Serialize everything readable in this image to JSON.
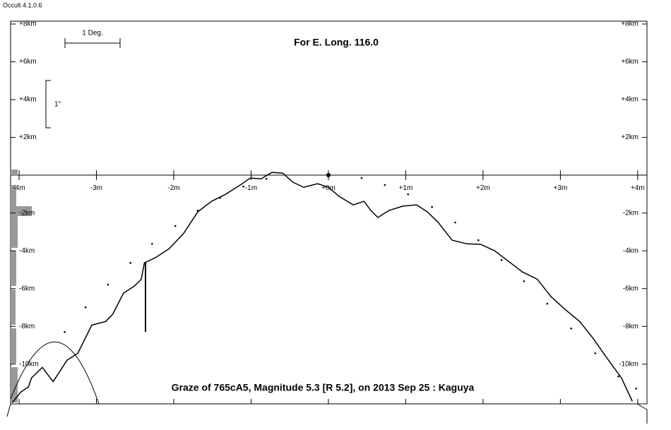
{
  "app_title": "Occult 4.1.0.6",
  "chart_data": {
    "type": "line",
    "title": "For E. Long. 116.0",
    "caption": "Graze of  765cA5,  Magnitude 5.3 [R 5.2],  on 2013 Sep 25  :  Kaguya",
    "scale_labels": {
      "degree": "1 Deg.",
      "arcsec": "1\""
    },
    "xlim": [
      -4.11,
      4.12
    ],
    "ylim": [
      -12.1,
      8.15
    ],
    "xticks": [
      {
        "value": -4,
        "label": "-4m"
      },
      {
        "value": -3,
        "label": "-3m"
      },
      {
        "value": -2,
        "label": "-2m"
      },
      {
        "value": -1,
        "label": "-1m"
      },
      {
        "value": 0,
        "label": "+0m"
      },
      {
        "value": 1,
        "label": "+1m"
      },
      {
        "value": 2,
        "label": "+2m"
      },
      {
        "value": 3,
        "label": "+3m"
      },
      {
        "value": 4,
        "label": "+4m"
      }
    ],
    "yticks": [
      {
        "value": 8,
        "label": "+8km"
      },
      {
        "value": 6,
        "label": "+6km"
      },
      {
        "value": 4,
        "label": "+4km"
      },
      {
        "value": 2,
        "label": "+2km"
      },
      {
        "value": -2,
        "label": "-2km"
      },
      {
        "value": -4,
        "label": "-4km"
      },
      {
        "value": -6,
        "label": "-6km"
      },
      {
        "value": -8,
        "label": "-8km"
      },
      {
        "value": -10,
        "label": "-10km"
      }
    ],
    "series": [
      {
        "style": "line",
        "color": "#000000",
        "x": [
          -4.09,
          -3.98,
          -3.88,
          -3.84,
          -3.7,
          -3.56,
          -3.47,
          -3.38,
          -3.24,
          -3.06,
          -2.88,
          -2.79,
          -2.65,
          -2.51,
          -2.42,
          -2.38,
          -2.24,
          -2.06,
          -1.87,
          -1.69,
          -1.51,
          -1.33,
          -1.14,
          -1.01,
          -0.87,
          -0.73,
          -0.59,
          -0.46,
          -0.32,
          -0.14,
          0,
          0.14,
          0.32,
          0.46,
          0.55,
          0.64,
          0.78,
          0.96,
          1.14,
          1.28,
          1.42,
          1.6,
          1.79,
          1.97,
          2.15,
          2.33,
          2.51,
          2.7,
          2.88,
          3.06,
          3.25,
          3.43,
          3.61,
          3.79,
          3.93
        ],
        "values": [
          -12.04,
          -11.48,
          -11.21,
          -10.73,
          -10.17,
          -10.92,
          -10.36,
          -9.79,
          -9.42,
          -7.93,
          -7.74,
          -7.36,
          -6.24,
          -5.87,
          -5.5,
          -4.64,
          -4.37,
          -3.89,
          -3.07,
          -1.94,
          -1.38,
          -1.01,
          -0.52,
          -0.15,
          -0.19,
          0.15,
          0.11,
          -0.37,
          -0.64,
          -0.45,
          -0.64,
          -1.12,
          -1.57,
          -1.38,
          -1.87,
          -2.24,
          -1.87,
          -1.64,
          -1.57,
          -1.94,
          -2.5,
          -3.44,
          -3.63,
          -3.66,
          -4.0,
          -4.56,
          -5.12,
          -5.5,
          -6.43,
          -7.1,
          -7.74,
          -8.67,
          -9.72,
          -10.73,
          -11.96
        ]
      },
      {
        "style": "dots",
        "color": "#000000",
        "x": [
          -3.41,
          -3.14,
          -2.85,
          -2.56,
          -2.28,
          -1.98,
          -1.69,
          -1.4,
          -1.1,
          -0.8,
          0.43,
          0.73,
          1.03,
          1.34,
          1.64,
          1.94,
          2.24,
          2.53,
          2.83,
          3.14,
          3.45,
          3.75,
          3.98
        ],
        "values": [
          -8.3,
          -6.99,
          -5.79,
          -4.64,
          -3.63,
          -2.69,
          -1.87,
          -1.2,
          -0.6,
          -0.19,
          -0.15,
          -0.52,
          -1.01,
          -1.68,
          -2.5,
          -3.44,
          -4.49,
          -5.61,
          -6.8,
          -8.11,
          -9.42,
          -10.65,
          -11.29
        ]
      }
    ]
  }
}
